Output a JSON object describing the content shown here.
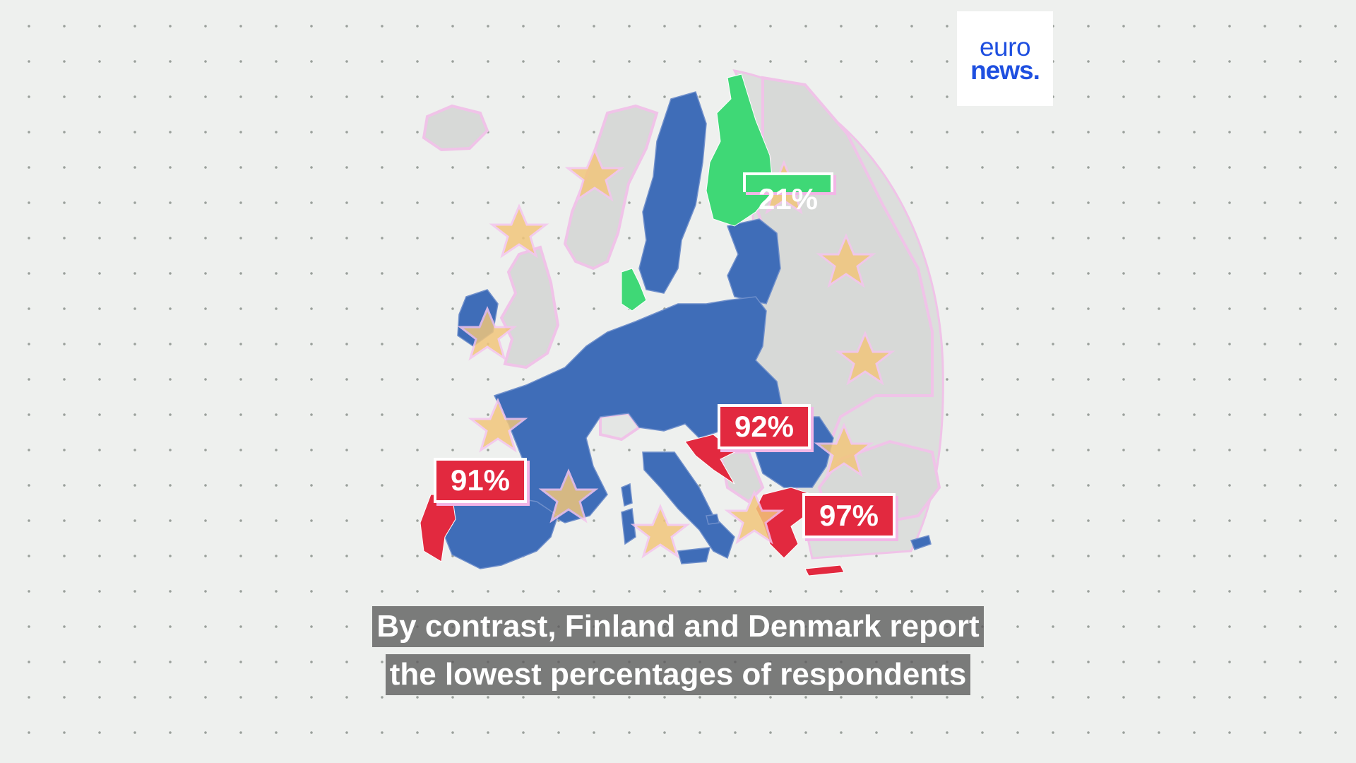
{
  "brand": {
    "logo_line1": "euro",
    "logo_line2": "news.",
    "color": "#1e4fe0"
  },
  "map": {
    "colors": {
      "eu_default": "#3f6db8",
      "highest": "#e2293f",
      "lowest": "#3fd876",
      "non_eu": "#d7d9d7",
      "star": "#f1c67a",
      "glow": "#f2b6e6"
    },
    "labels": [
      {
        "country": "Portugal",
        "value": "91%",
        "style": "highest"
      },
      {
        "country": "Croatia",
        "value": "92%",
        "style": "highest"
      },
      {
        "country": "Greece",
        "value": "97%",
        "style": "highest"
      },
      {
        "country": "Finland",
        "value": "21%",
        "style": "lowest"
      }
    ]
  },
  "caption": {
    "line1": "By contrast, Finland and Denmark report",
    "line2": "the lowest percentages of respondents"
  }
}
